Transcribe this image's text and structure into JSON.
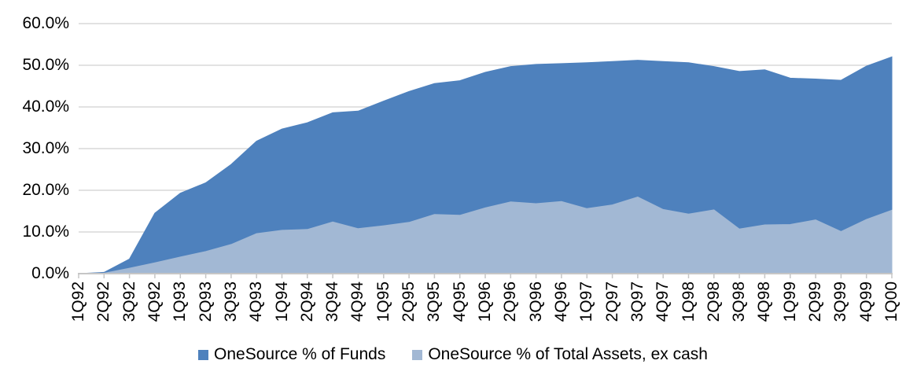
{
  "chart_data": {
    "type": "area",
    "title": "",
    "xlabel": "",
    "ylabel": "",
    "categories": [
      "1Q92",
      "2Q92",
      "3Q92",
      "4Q92",
      "1Q93",
      "2Q93",
      "3Q93",
      "4Q93",
      "1Q94",
      "2Q94",
      "3Q94",
      "4Q94",
      "1Q95",
      "2Q95",
      "3Q95",
      "4Q95",
      "1Q96",
      "2Q96",
      "3Q96",
      "4Q96",
      "1Q97",
      "2Q97",
      "3Q97",
      "4Q97",
      "1Q98",
      "2Q98",
      "3Q98",
      "4Q98",
      "1Q99",
      "2Q99",
      "3Q99",
      "4Q99",
      "1Q00"
    ],
    "series": [
      {
        "id": "funds",
        "name": "OneSource % of Funds",
        "color": "#4E81BD",
        "values": [
          0.0,
          0.3,
          3.5,
          14.5,
          19.3,
          21.8,
          26.2,
          31.8,
          34.7,
          36.2,
          38.6,
          39.0,
          41.4,
          43.7,
          45.6,
          46.3,
          48.3,
          49.7,
          50.2,
          50.4,
          50.6,
          50.9,
          51.2,
          50.9,
          50.6,
          49.7,
          48.5,
          48.9,
          46.9,
          46.7,
          46.4,
          49.8,
          52.0
        ]
      },
      {
        "id": "assets",
        "name": "OneSource % of Total Assets, ex cash",
        "color": "#A2B8D4",
        "values": [
          0.0,
          0.1,
          1.3,
          2.6,
          4.0,
          5.3,
          7.0,
          9.6,
          10.4,
          10.6,
          12.4,
          10.8,
          11.5,
          12.3,
          14.2,
          14.0,
          15.8,
          17.2,
          16.8,
          17.3,
          15.6,
          16.5,
          18.4,
          15.4,
          14.3,
          15.3,
          10.7,
          11.7,
          11.8,
          12.9,
          10.1,
          13.0,
          15.2
        ]
      }
    ],
    "overlap_not_stacked": true,
    "ylim": [
      0,
      60
    ],
    "y_ticks": [
      "60.0%",
      "50.0%",
      "40.0%",
      "30.0%",
      "20.0%",
      "10.0%",
      "0.0%"
    ],
    "y_tick_values": [
      60,
      50,
      40,
      30,
      20,
      10,
      0
    ],
    "grid": "horizontal",
    "gridline_color": "#D9D9D9",
    "axis_color": "#C6C6C6",
    "legend_position": "bottom"
  },
  "legend": {
    "funds_label": "OneSource % of Funds",
    "assets_label": "OneSource % of Total Assets, ex cash"
  }
}
